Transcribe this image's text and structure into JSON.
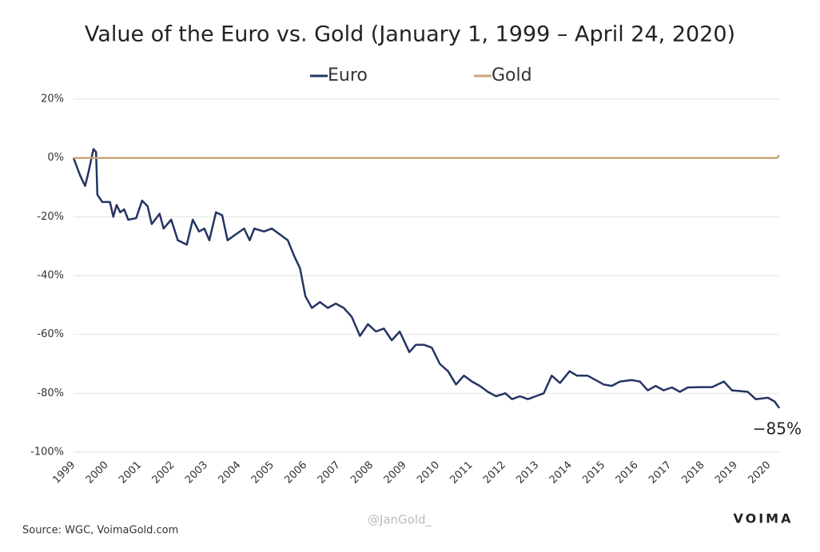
{
  "chart_data": {
    "type": "line",
    "title": "Value of the Euro vs. Gold (January 1, 1999 – April 24, 2020)",
    "series": [
      {
        "name": "Euro",
        "color": "#243463",
        "x": [
          1999.0,
          1999.2,
          1999.35,
          1999.45,
          1999.6,
          1999.68,
          1999.72,
          1999.87,
          2000.1,
          2000.2,
          2000.3,
          2000.41,
          2000.53,
          2000.65,
          2000.89,
          2001.07,
          2001.24,
          2001.36,
          2001.6,
          2001.72,
          2001.95,
          2002.15,
          2002.42,
          2002.6,
          2002.79,
          2002.95,
          2003.1,
          2003.3,
          2003.49,
          2003.65,
          2003.9,
          2004.15,
          2004.32,
          2004.46,
          2004.75,
          2004.99,
          2005.23,
          2005.47,
          2005.67,
          2005.84,
          2006.0,
          2006.2,
          2006.44,
          2006.68,
          2006.92,
          2007.16,
          2007.4,
          2007.65,
          2007.89,
          2008.13,
          2008.37,
          2008.61,
          2008.85,
          2009.14,
          2009.34,
          2009.58,
          2009.82,
          2010.06,
          2010.31,
          2010.55,
          2010.79,
          2011.03,
          2011.27,
          2011.51,
          2011.76,
          2012.04,
          2012.24,
          2012.48,
          2012.72,
          2012.96,
          2013.2,
          2013.44,
          2013.69,
          2013.98,
          2014.2,
          2014.52,
          2014.77,
          2015.01,
          2015.25,
          2015.5,
          2015.86,
          2016.1,
          2016.34,
          2016.58,
          2016.82,
          2017.07,
          2017.31,
          2017.55,
          2017.91,
          2018.28,
          2018.64,
          2018.88,
          2019.36,
          2019.6,
          2019.97,
          2020.17,
          2020.31
        ],
        "values": [
          0,
          -6,
          -9.5,
          -5,
          3,
          2,
          -12.5,
          -15,
          -15,
          -20,
          -16,
          -18.5,
          -17.5,
          -21,
          -20.5,
          -14.5,
          -16.5,
          -22.5,
          -19,
          -24,
          -21,
          -28,
          -29.5,
          -21,
          -25,
          -24,
          -28,
          -18.5,
          -19.5,
          -28,
          -26,
          -24,
          -28,
          -24,
          -25,
          -24,
          -26,
          -28,
          -33.5,
          -37.5,
          -47,
          -51,
          -49,
          -51,
          -49.5,
          -51,
          -54,
          -60.5,
          -56.5,
          -59,
          -58,
          -62,
          -59,
          -66,
          -63.5,
          -63.5,
          -64.5,
          -70,
          -72.5,
          -77,
          -74,
          -76,
          -77.5,
          -79.5,
          -81,
          -80,
          -82,
          -81,
          -82,
          -81,
          -80,
          -74,
          -76.5,
          -72.5,
          -74,
          -74,
          -75.5,
          -77,
          -77.5,
          -76,
          -75.5,
          -76,
          -79,
          -77.5,
          -79,
          -78,
          -79.5,
          -78,
          -77.9,
          -77.9,
          -76,
          -79,
          -79.5,
          -82,
          -81.5,
          -82.8,
          -85
        ]
      },
      {
        "name": "Gold",
        "color": "#c9a57a",
        "x": [
          1999.0,
          2020.25,
          2020.31
        ],
        "values": [
          0,
          0,
          1
        ]
      }
    ],
    "xlim": [
      1999,
      2020.31
    ],
    "xticks": [
      1999,
      2000,
      2001,
      2002,
      2003,
      2004,
      2005,
      2006,
      2007,
      2008,
      2009,
      2010,
      2011,
      2012,
      2013,
      2014,
      2015,
      2016,
      2017,
      2018,
      2019,
      2020
    ],
    "ylim": [
      -100,
      20
    ],
    "yticks": [
      {
        "value": -100,
        "label": "-100%"
      },
      {
        "value": -80,
        "label": "-80%"
      },
      {
        "value": -60,
        "label": "-60%"
      },
      {
        "value": -40,
        "label": "-40%"
      },
      {
        "value": -20,
        "label": "-20%"
      },
      {
        "value": 0,
        "label": "0%"
      },
      {
        "value": 20,
        "label": "20%"
      }
    ],
    "grid": true,
    "annotation": {
      "text": "−85%",
      "x": 2020.31,
      "y": -85
    },
    "source": "Source: WGC, VoimaGold.com",
    "watermark": "@JanGold_",
    "brand": "VOIMA"
  }
}
